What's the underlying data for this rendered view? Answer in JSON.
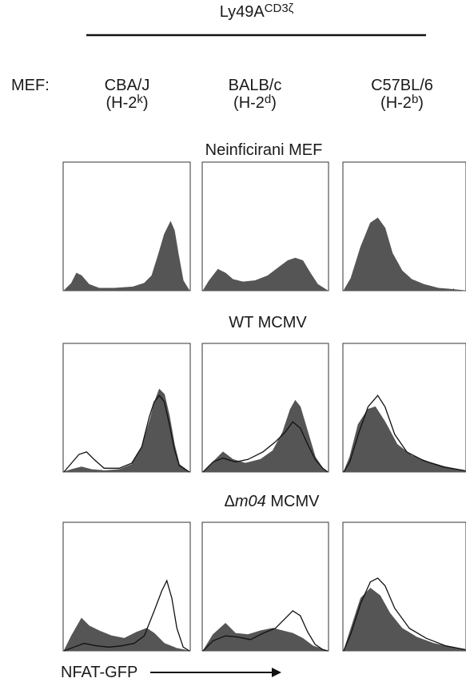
{
  "header": {
    "construct": "Ly49A",
    "construct_sup": "CD3ζ"
  },
  "mef_label": "MEF:",
  "strains": [
    {
      "name": "CBA/J",
      "haplo_prefix": "(H-2",
      "haplo_sup": "k",
      "haplo_suffix": ")"
    },
    {
      "name": "BALB/c",
      "haplo_prefix": "(H-2",
      "haplo_sup": "d",
      "haplo_suffix": ")"
    },
    {
      "name": "C57BL/6",
      "haplo_prefix": "(H-2",
      "haplo_sup": "b",
      "haplo_suffix": ")"
    }
  ],
  "rows": [
    {
      "prefix": "",
      "italic": "",
      "suffix": "Neinficirani MEF"
    },
    {
      "prefix": "",
      "italic": "",
      "suffix": "WT MCMV"
    },
    {
      "prefix": "Δ",
      "italic": "m04",
      "suffix": " MCMV"
    }
  ],
  "xlabel": "NFAT-GFP",
  "colors": {
    "filled": "#555555",
    "line": "#111111",
    "frame": "#333333"
  },
  "chart_data": {
    "type": "area",
    "xlabel": "NFAT-GFP",
    "x_scale": "log",
    "xlim": [
      0,
      100
    ],
    "ylim": [
      0,
      100
    ],
    "note_units": "x = percent of histogram width, y = percent of panel height",
    "panels": [
      {
        "row": 0,
        "col": 0,
        "filled": [
          [
            0,
            0
          ],
          [
            6,
            6
          ],
          [
            10,
            14
          ],
          [
            14,
            12
          ],
          [
            20,
            5
          ],
          [
            28,
            2
          ],
          [
            40,
            2
          ],
          [
            55,
            3
          ],
          [
            64,
            6
          ],
          [
            70,
            12
          ],
          [
            75,
            28
          ],
          [
            80,
            45
          ],
          [
            85,
            55
          ],
          [
            88,
            48
          ],
          [
            91,
            30
          ],
          [
            95,
            8
          ],
          [
            100,
            0
          ]
        ],
        "line": null
      },
      {
        "row": 0,
        "col": 1,
        "filled": [
          [
            0,
            0
          ],
          [
            5,
            8
          ],
          [
            12,
            17
          ],
          [
            18,
            14
          ],
          [
            24,
            9
          ],
          [
            32,
            7
          ],
          [
            42,
            8
          ],
          [
            52,
            12
          ],
          [
            60,
            18
          ],
          [
            68,
            24
          ],
          [
            74,
            26
          ],
          [
            80,
            24
          ],
          [
            86,
            14
          ],
          [
            92,
            5
          ],
          [
            100,
            0
          ]
        ],
        "line": null
      },
      {
        "row": 0,
        "col": 2,
        "filled": [
          [
            0,
            0
          ],
          [
            6,
            10
          ],
          [
            14,
            35
          ],
          [
            22,
            54
          ],
          [
            28,
            58
          ],
          [
            34,
            50
          ],
          [
            40,
            30
          ],
          [
            48,
            16
          ],
          [
            56,
            9
          ],
          [
            66,
            5
          ],
          [
            78,
            2
          ],
          [
            90,
            1
          ],
          [
            100,
            0
          ]
        ],
        "line": null
      },
      {
        "row": 1,
        "col": 0,
        "filled": [
          [
            0,
            0
          ],
          [
            6,
            2
          ],
          [
            14,
            4
          ],
          [
            22,
            2
          ],
          [
            32,
            1
          ],
          [
            44,
            2
          ],
          [
            54,
            6
          ],
          [
            62,
            20
          ],
          [
            68,
            40
          ],
          [
            73,
            58
          ],
          [
            76,
            66
          ],
          [
            80,
            62
          ],
          [
            84,
            45
          ],
          [
            88,
            22
          ],
          [
            92,
            6
          ],
          [
            100,
            0
          ]
        ],
        "line": [
          [
            0,
            0
          ],
          [
            6,
            7
          ],
          [
            12,
            14
          ],
          [
            18,
            16
          ],
          [
            24,
            10
          ],
          [
            32,
            3
          ],
          [
            44,
            3
          ],
          [
            54,
            7
          ],
          [
            62,
            20
          ],
          [
            68,
            44
          ],
          [
            72,
            56
          ],
          [
            76,
            61
          ],
          [
            80,
            56
          ],
          [
            84,
            38
          ],
          [
            88,
            18
          ],
          [
            92,
            5
          ],
          [
            100,
            0
          ]
        ]
      },
      {
        "row": 1,
        "col": 1,
        "filled": [
          [
            0,
            0
          ],
          [
            8,
            8
          ],
          [
            16,
            16
          ],
          [
            24,
            10
          ],
          [
            34,
            7
          ],
          [
            46,
            10
          ],
          [
            56,
            17
          ],
          [
            64,
            32
          ],
          [
            70,
            50
          ],
          [
            74,
            57
          ],
          [
            78,
            52
          ],
          [
            84,
            32
          ],
          [
            90,
            12
          ],
          [
            96,
            3
          ],
          [
            100,
            0
          ]
        ],
        "line": [
          [
            0,
            0
          ],
          [
            8,
            8
          ],
          [
            16,
            11
          ],
          [
            26,
            8
          ],
          [
            36,
            10
          ],
          [
            48,
            16
          ],
          [
            58,
            24
          ],
          [
            66,
            32
          ],
          [
            72,
            40
          ],
          [
            78,
            35
          ],
          [
            84,
            22
          ],
          [
            90,
            10
          ],
          [
            96,
            3
          ],
          [
            100,
            0
          ]
        ]
      },
      {
        "row": 1,
        "col": 2,
        "filled": [
          [
            0,
            0
          ],
          [
            5,
            12
          ],
          [
            12,
            38
          ],
          [
            20,
            50
          ],
          [
            26,
            52
          ],
          [
            34,
            40
          ],
          [
            44,
            22
          ],
          [
            56,
            13
          ],
          [
            70,
            8
          ],
          [
            84,
            4
          ],
          [
            100,
            1
          ]
        ],
        "line": [
          [
            0,
            0
          ],
          [
            5,
            8
          ],
          [
            12,
            30
          ],
          [
            20,
            52
          ],
          [
            28,
            61
          ],
          [
            34,
            52
          ],
          [
            42,
            30
          ],
          [
            52,
            16
          ],
          [
            66,
            9
          ],
          [
            82,
            4
          ],
          [
            100,
            1
          ]
        ]
      },
      {
        "row": 2,
        "col": 0,
        "filled": [
          [
            0,
            0
          ],
          [
            6,
            12
          ],
          [
            14,
            26
          ],
          [
            20,
            20
          ],
          [
            28,
            16
          ],
          [
            38,
            12
          ],
          [
            48,
            10
          ],
          [
            58,
            15
          ],
          [
            66,
            18
          ],
          [
            72,
            14
          ],
          [
            80,
            6
          ],
          [
            90,
            2
          ],
          [
            100,
            0
          ]
        ],
        "line": [
          [
            0,
            0
          ],
          [
            8,
            3
          ],
          [
            16,
            6
          ],
          [
            26,
            4
          ],
          [
            36,
            3
          ],
          [
            46,
            4
          ],
          [
            56,
            6
          ],
          [
            64,
            12
          ],
          [
            72,
            32
          ],
          [
            78,
            48
          ],
          [
            82,
            56
          ],
          [
            86,
            42
          ],
          [
            90,
            18
          ],
          [
            95,
            3
          ],
          [
            100,
            0
          ]
        ]
      },
      {
        "row": 2,
        "col": 1,
        "filled": [
          [
            0,
            0
          ],
          [
            8,
            13
          ],
          [
            18,
            22
          ],
          [
            26,
            14
          ],
          [
            36,
            13
          ],
          [
            46,
            16
          ],
          [
            56,
            18
          ],
          [
            64,
            16
          ],
          [
            72,
            14
          ],
          [
            80,
            10
          ],
          [
            88,
            4
          ],
          [
            100,
            0
          ]
        ],
        "line": [
          [
            0,
            0
          ],
          [
            8,
            8
          ],
          [
            18,
            12
          ],
          [
            28,
            11
          ],
          [
            38,
            9
          ],
          [
            48,
            14
          ],
          [
            58,
            18
          ],
          [
            66,
            26
          ],
          [
            72,
            32
          ],
          [
            78,
            28
          ],
          [
            84,
            15
          ],
          [
            90,
            5
          ],
          [
            96,
            1
          ],
          [
            100,
            0
          ]
        ]
      },
      {
        "row": 2,
        "col": 2,
        "filled": [
          [
            0,
            0
          ],
          [
            6,
            18
          ],
          [
            14,
            42
          ],
          [
            22,
            50
          ],
          [
            30,
            44
          ],
          [
            38,
            30
          ],
          [
            48,
            18
          ],
          [
            60,
            11
          ],
          [
            74,
            6
          ],
          [
            88,
            3
          ],
          [
            100,
            1
          ]
        ],
        "line": [
          [
            0,
            0
          ],
          [
            6,
            14
          ],
          [
            14,
            38
          ],
          [
            22,
            55
          ],
          [
            28,
            58
          ],
          [
            34,
            52
          ],
          [
            42,
            34
          ],
          [
            54,
            18
          ],
          [
            68,
            10
          ],
          [
            84,
            4
          ],
          [
            100,
            1
          ]
        ]
      }
    ]
  }
}
